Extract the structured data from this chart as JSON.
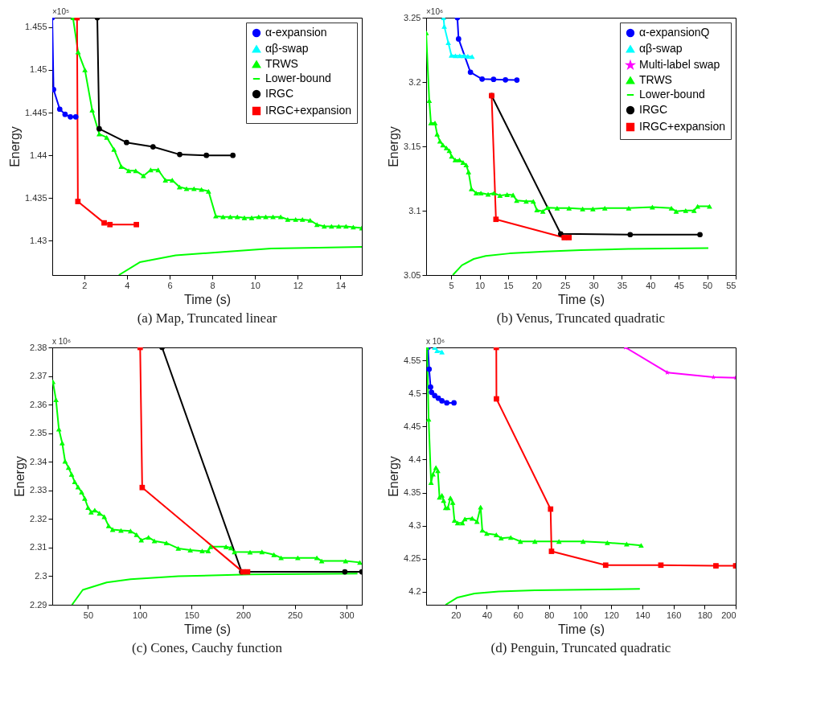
{
  "chart_data": [
    {
      "type": "line",
      "title": "(a) Map, Truncated linear",
      "xlabel": "Time (s)",
      "ylabel": "Energy",
      "annotations": [
        "×10⁵"
      ],
      "legend": "top right",
      "xlim": [
        0.5,
        15
      ],
      "ylim": [
        1.426,
        1.4561
      ],
      "xticks": [
        2,
        4,
        6,
        8,
        10,
        12,
        14
      ],
      "yticks": [
        1.43,
        1.435,
        1.44,
        1.445,
        1.45,
        1.455
      ],
      "series": [
        {
          "name": "α-expansion",
          "color": "#0000ff",
          "marker": "circle",
          "x": [
            0.5,
            0.56,
            0.85,
            1.1,
            1.35,
            1.6
          ],
          "values": [
            1.4561,
            1.4477,
            1.4454,
            1.4448,
            1.4445,
            1.4445
          ]
        },
        {
          "name": "αβ-swap",
          "color": "#00ffff",
          "marker": "triangle"
        },
        {
          "name": "TRWS",
          "color": "#00ff00",
          "marker": "triangle",
          "x": [
            1.47,
            1.71,
            2.03,
            2.37,
            2.7,
            3.05,
            3.39,
            3.73,
            4.08,
            4.41,
            4.77,
            5.11,
            5.46,
            5.8,
            6.12,
            6.46,
            6.79,
            7.14,
            7.49,
            7.82,
            8.16,
            8.5,
            8.84,
            9.17,
            9.5,
            9.84,
            10.17,
            10.5,
            10.84,
            11.2,
            11.53,
            11.9,
            12.22,
            12.58,
            12.9,
            13.24,
            13.58,
            13.92,
            14.26,
            14.6,
            15
          ],
          "values": [
            1.4561,
            1.4521,
            1.45,
            1.4453,
            1.4425,
            1.4421,
            1.4407,
            1.4387,
            1.4382,
            1.4382,
            1.4376,
            1.4383,
            1.4383,
            1.4371,
            1.4371,
            1.4363,
            1.4361,
            1.4361,
            1.436,
            1.4358,
            1.4329,
            1.4328,
            1.4328,
            1.4328,
            1.4327,
            1.4327,
            1.4328,
            1.4328,
            1.4328,
            1.4328,
            1.4325,
            1.4325,
            1.4325,
            1.4324,
            1.4319,
            1.4317,
            1.4317,
            1.4317,
            1.4317,
            1.4316,
            1.4315
          ]
        },
        {
          "name": "Lower-bound",
          "color": "#00ff00",
          "marker": "none",
          "x": [
            3.62,
            4.6,
            6.28,
            8.51,
            10.75,
            12.98,
            15
          ],
          "values": [
            1.426,
            1.4275,
            1.4283,
            1.4287,
            1.4291,
            1.4292,
            1.4293
          ]
        },
        {
          "name": "IRGC",
          "color": "#000000",
          "marker": "circle",
          "x": [
            2.61,
            2.7,
            3.98,
            5.22,
            6.47,
            7.72,
            8.96
          ],
          "values": [
            1.4561,
            1.4431,
            1.4415,
            1.441,
            1.4401,
            1.44,
            1.44
          ]
        },
        {
          "name": "IRGC+expansion",
          "color": "#ff0000",
          "marker": "square",
          "x": [
            1.66,
            1.7,
            2.93,
            3.2,
            4.44
          ],
          "values": [
            1.4561,
            1.4346,
            1.4321,
            1.4319,
            1.4319
          ]
        }
      ]
    },
    {
      "type": "line",
      "title": "(b) Venus, Truncated quadratic",
      "xlabel": "Time (s)",
      "ylabel": "Energy",
      "annotations": [
        "×10⁶"
      ],
      "legend": "top right",
      "xlim": [
        0.6,
        55
      ],
      "ylim": [
        3.05,
        3.25
      ],
      "xticks": [
        5,
        10,
        15,
        20,
        25,
        30,
        35,
        40,
        45,
        50,
        55
      ],
      "yticks": [
        3.05,
        3.1,
        3.15,
        3.2,
        3.25
      ],
      "series": [
        {
          "name": "α-expansionQ",
          "color": "#0000ff",
          "marker": "circle",
          "x": [
            6.09,
            6.3,
            8.39,
            10.44,
            12.45,
            14.54,
            16.55
          ],
          "values": [
            3.25,
            3.2335,
            3.2076,
            3.2023,
            3.2021,
            3.2017,
            3.2015
          ]
        },
        {
          "name": "αβ-swap",
          "color": "#00ffff",
          "marker": "triangle",
          "x": [
            3.66,
            3.79,
            4.5,
            5.04,
            5.75,
            6.51,
            7.22,
            7.93,
            8.68
          ],
          "values": [
            3.25,
            3.2432,
            3.2305,
            3.2208,
            3.2204,
            3.2204,
            3.2204,
            3.22,
            3.2198
          ]
        },
        {
          "name": "Multi-label swap",
          "color": "#ff00ff",
          "marker": "star"
        },
        {
          "name": "TRWS",
          "color": "#00ff00",
          "marker": "triangle",
          "x": [
            0.6,
            1.15,
            1.44,
            2.15,
            2.53,
            3.03,
            3.54,
            4.16,
            4.67,
            5.08,
            5.71,
            6.46,
            7.09,
            7.64,
            8.05,
            8.56,
            9.39,
            10.23,
            11.49,
            12.53,
            13.58,
            14.83,
            15.88,
            16.51,
            18.18,
            19.43,
            20.06,
            21.11,
            21.95,
            23.62,
            25.71,
            28.1,
            29.9,
            32,
            36.2,
            40.36,
            43.7,
            44.54,
            46.21,
            47.68,
            48.31,
            50.4
          ],
          "values": [
            3.2383,
            3.1856,
            3.1682,
            3.1682,
            3.1595,
            3.154,
            3.1511,
            3.1488,
            3.1466,
            3.1423,
            3.1394,
            3.1394,
            3.1375,
            3.1355,
            3.1301,
            3.117,
            3.1137,
            3.1137,
            3.1127,
            3.1137,
            3.1118,
            3.1125,
            3.1122,
            3.1079,
            3.1073,
            3.1073,
            3.1005,
            3.0995,
            3.1024,
            3.102,
            3.102,
            3.1014,
            3.1014,
            3.102,
            3.102,
            3.1028,
            3.102,
            3.0995,
            3.1001,
            3.1001,
            3.1034,
            3.1034
          ]
        },
        {
          "name": "Lower-bound",
          "color": "#00ff00",
          "marker": "none",
          "x": [
            5.29,
            6.88,
            8.97,
            11.07,
            15.25,
            21.53,
            27.8,
            36.17,
            50.19
          ],
          "values": [
            3.05,
            3.0576,
            3.0625,
            3.0648,
            3.0668,
            3.0683,
            3.0693,
            3.0703,
            3.0709
          ]
        },
        {
          "name": "IRGC",
          "color": "#000000",
          "marker": "circle",
          "x": [
            12.11,
            24.25,
            36.46,
            48.72
          ],
          "values": [
            3.1894,
            3.082,
            3.0814,
            3.0814
          ]
        },
        {
          "name": "IRGC+expansion",
          "color": "#ff0000",
          "marker": "square",
          "x": [
            12.11,
            12.87,
            24.87,
            25.71
          ],
          "values": [
            3.1894,
            3.0933,
            3.0791,
            3.0791
          ]
        }
      ]
    },
    {
      "type": "line",
      "title": "(c) Cones, Cauchy function",
      "xlabel": "Time (s)",
      "ylabel": "Energy",
      "annotations": [
        "x 10⁶"
      ],
      "xlim": [
        15.4,
        314.8
      ],
      "ylim": [
        2.29,
        2.38
      ],
      "xticks": [
        50,
        100,
        150,
        200,
        250,
        300
      ],
      "yticks": [
        2.29,
        2.3,
        2.31,
        2.32,
        2.33,
        2.34,
        2.35,
        2.36,
        2.37,
        2.38
      ],
      "series": [
        {
          "color": "#00ff00",
          "marker": "triangle",
          "x": [
            16,
            19,
            21.8,
            25,
            27.8,
            31.1,
            34.1,
            37.1,
            40.3,
            43.8,
            46.8,
            50,
            53,
            56.5,
            61.1,
            65.7,
            69.9,
            73.8,
            81.9,
            91.1,
            96.9,
            101.5,
            108.5,
            114.2,
            125.8,
            137.3,
            148.9,
            160.4,
            166.2,
            168.5,
            183.5,
            188.2,
            191.6,
            206.7,
            218.2,
            229.8,
            236.7,
            252.9,
            271.3,
            276,
            299.1,
            312.9
          ],
          "values": [
            2.368,
            2.3617,
            2.3514,
            2.3466,
            2.3402,
            2.338,
            2.3356,
            2.333,
            2.3312,
            2.3294,
            2.3272,
            2.324,
            2.3224,
            2.3231,
            2.322,
            2.3208,
            2.3176,
            2.3163,
            2.316,
            2.3158,
            2.3145,
            2.3126,
            2.3136,
            2.3123,
            2.3116,
            2.3097,
            2.3091,
            2.3088,
            2.3088,
            2.3103,
            2.3103,
            2.3099,
            2.3085,
            2.3084,
            2.3085,
            2.3075,
            2.3064,
            2.3064,
            2.3064,
            2.3053,
            2.3053,
            2.3048
          ]
        },
        {
          "color": "#00ff00",
          "marker": "none",
          "x": [
            34.5,
            44.9,
            68,
            91.1,
            137.3,
            206.7,
            310.6
          ],
          "values": [
            2.29,
            2.2952,
            2.2978,
            2.2989,
            2.3,
            2.3006,
            2.3009
          ]
        },
        {
          "color": "#000000",
          "marker": "circle",
          "x": [
            121.6,
            198.6,
            298.4,
            314.8
          ],
          "values": [
            2.38,
            2.3015,
            2.3015,
            2.3015
          ]
        },
        {
          "color": "#ff0000",
          "marker": "square",
          "x": [
            100.4,
            102.4,
            199.7,
            204.3
          ],
          "values": [
            2.38,
            2.331,
            2.3015,
            2.3015
          ]
        }
      ]
    },
    {
      "type": "line",
      "title": "(d) Penguin, Truncated quadratic",
      "xlabel": "Time (s)",
      "ylabel": "Energy",
      "annotations": [
        "x 10⁶"
      ],
      "xlim": [
        1,
        200
      ],
      "ylim": [
        4.18,
        4.57
      ],
      "xticks": [
        20,
        40,
        60,
        80,
        100,
        120,
        140,
        160,
        180,
        200
      ],
      "yticks": [
        4.2,
        4.25,
        4.3,
        4.35,
        4.4,
        4.45,
        4.5,
        4.55
      ],
      "series": [
        {
          "color": "#0000ff",
          "marker": "circle",
          "x": [
            2.15,
            2.93,
            3.86,
            4.48,
            6.5,
            8.83,
            11.15,
            14.26,
            18.9
          ],
          "values": [
            4.57,
            4.537,
            4.51,
            4.502,
            4.497,
            4.493,
            4.489,
            4.486,
            4.486
          ]
        },
        {
          "color": "#00ffff",
          "marker": "triangle",
          "x": [
            6.5,
            8,
            11.15
          ],
          "values": [
            4.57,
            4.565,
            4.563
          ]
        },
        {
          "color": "#ff00ff",
          "marker": "star",
          "x": [
            129.1,
            156,
            185.7,
            200
          ],
          "values": [
            4.57,
            4.532,
            4.525,
            4.524
          ]
        },
        {
          "color": "#00ff00",
          "marker": "triangle",
          "x": [
            1.53,
            2.62,
            4.17,
            5.41,
            7.28,
            8.5,
            9.6,
            11.15,
            12.24,
            13.5,
            15,
            16.6,
            18.1,
            19.2,
            21.2,
            24.3,
            25.9,
            30.6,
            33.7,
            36,
            37.1,
            40,
            46.1,
            49.2,
            55.4,
            61.6,
            70.9,
            86.4,
            101.9,
            117.5,
            129.9,
            139.2
          ],
          "values": [
            4.57,
            4.461,
            4.365,
            4.378,
            4.388,
            4.383,
            4.343,
            4.346,
            4.338,
            4.327,
            4.327,
            4.342,
            4.335,
            4.308,
            4.304,
            4.304,
            4.31,
            4.311,
            4.306,
            4.328,
            4.293,
            4.288,
            4.286,
            4.281,
            4.282,
            4.276,
            4.276,
            4.276,
            4.276,
            4.274,
            4.272,
            4.27
          ]
        },
        {
          "color": "#00ff00",
          "marker": "none",
          "x": [
            13.5,
            21.2,
            32.1,
            47.6,
            70.9,
            101.9,
            138.4
          ],
          "values": [
            4.18,
            4.191,
            4.197,
            4.2,
            4.202,
            4.203,
            4.204
          ]
        },
        {
          "color": "#ff0000",
          "marker": "square",
          "x": [
            46.1,
            46.2,
            81,
            81.6,
            116.4,
            151.9,
            187.3,
            200
          ],
          "values": [
            4.57,
            4.492,
            4.325,
            4.261,
            4.24,
            4.24,
            4.239,
            4.239
          ]
        }
      ]
    }
  ]
}
